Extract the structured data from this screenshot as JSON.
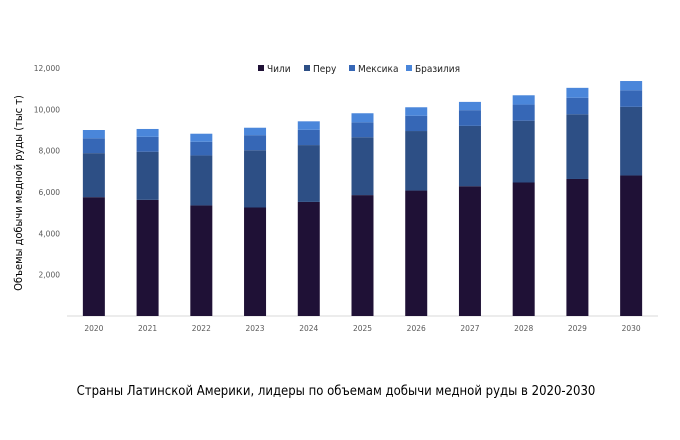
{
  "caption": "Страны Латинской Америки, лидеры по объемам добычи медной руды в 2020-2030",
  "chart_data": {
    "type": "bar",
    "stacked": true,
    "title": "",
    "xlabel": "",
    "ylabel": "Объемы добычи медной руды (тыс т)",
    "ylim": [
      0,
      12000
    ],
    "yticks": [
      "",
      "2,000",
      "4,000",
      "6,000",
      "8,000",
      "10,000",
      "12,000"
    ],
    "grid": false,
    "legend_position": "top-center",
    "categories": [
      "2020",
      "2021",
      "2022",
      "2023",
      "2024",
      "2025",
      "2026",
      "2027",
      "2028",
      "2029",
      "2030"
    ],
    "series": [
      {
        "name": "Чили",
        "color": "#1f1136",
        "values": [
          5750,
          5620,
          5350,
          5250,
          5520,
          5850,
          6070,
          6280,
          6460,
          6630,
          6800
        ]
      },
      {
        "name": "Перу",
        "color": "#2d4f85",
        "values": [
          2130,
          2330,
          2420,
          2770,
          2750,
          2800,
          2880,
          2920,
          2990,
          3130,
          3320
        ]
      },
      {
        "name": "Мексика",
        "color": "#3667b6",
        "values": [
          720,
          720,
          660,
          730,
          740,
          720,
          740,
          760,
          780,
          800,
          800
        ]
      },
      {
        "name": "Бразилия",
        "color": "#4a86da",
        "values": [
          400,
          380,
          390,
          360,
          410,
          440,
          410,
          400,
          450,
          480,
          450
        ]
      }
    ]
  }
}
